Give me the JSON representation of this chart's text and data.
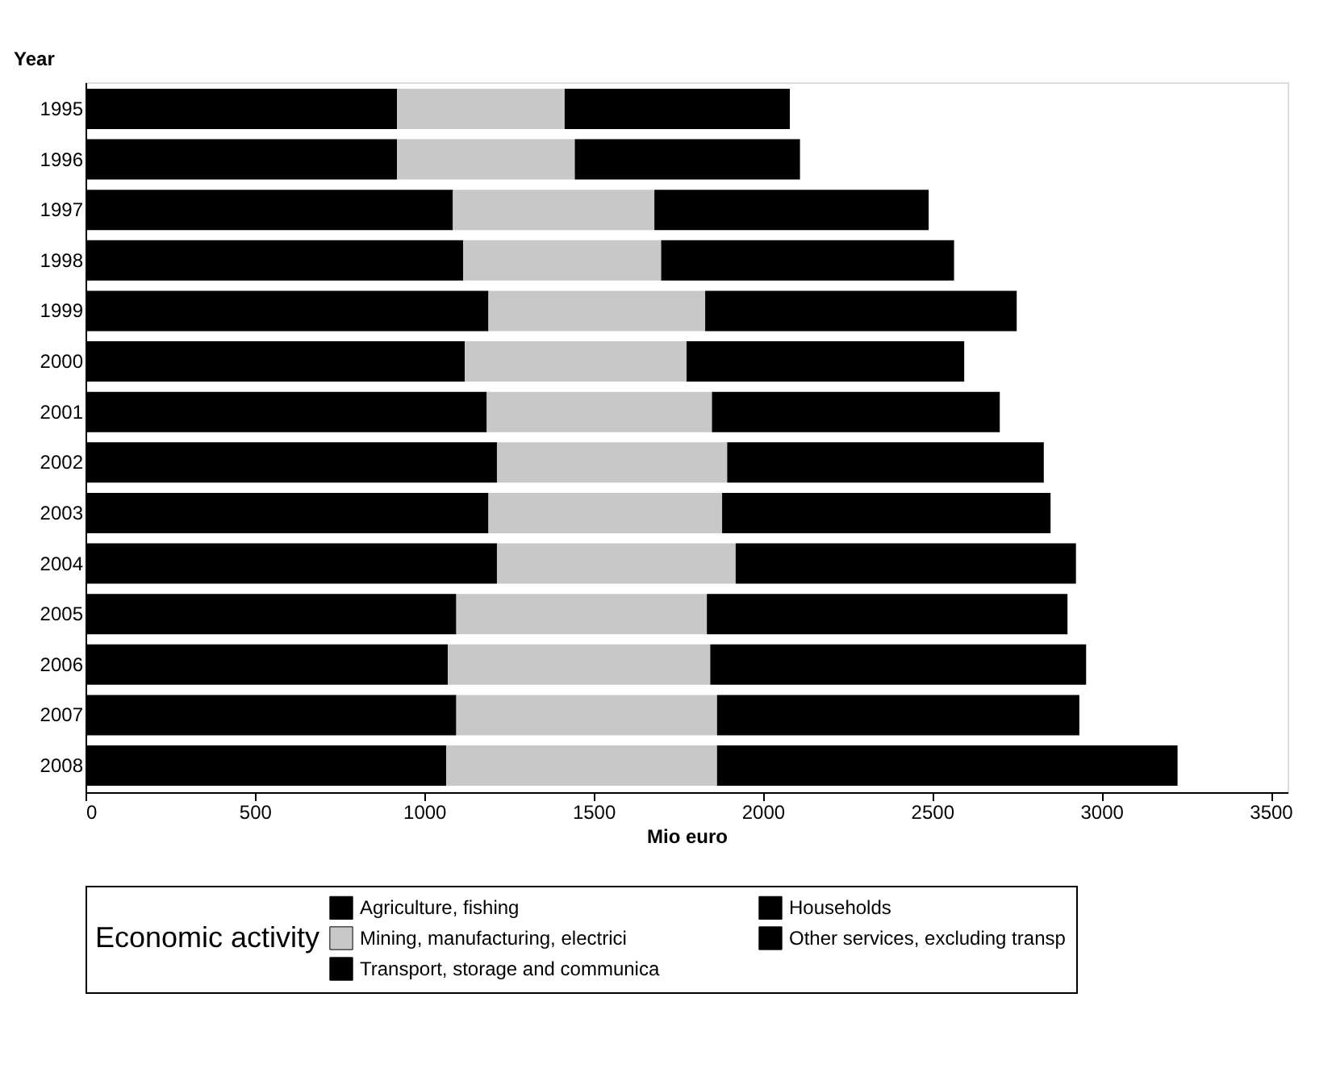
{
  "chart_data": {
    "type": "bar",
    "orientation": "horizontal",
    "stacked": true,
    "categories": [
      "1995",
      "1996",
      "1997",
      "1998",
      "1999",
      "2000",
      "2001",
      "2002",
      "2003",
      "2004",
      "2005",
      "2006",
      "2007",
      "2008"
    ],
    "series": [
      {
        "name": "Agriculture, fishing",
        "color": "#000000",
        "values": [
          920,
          920,
          1085,
          1115,
          1190,
          1120,
          1185,
          1215,
          1190,
          1215,
          1095,
          1070,
          1095,
          1065
        ]
      },
      {
        "name": "Mining, manufacturing, electrici",
        "color": "#c8c8c8",
        "values": [
          495,
          525,
          595,
          585,
          640,
          655,
          665,
          680,
          690,
          705,
          740,
          775,
          770,
          800
        ]
      },
      {
        "name": "Transport, storage and communica",
        "color": "#000000",
        "values": [
          665,
          665,
          810,
          865,
          920,
          820,
          850,
          935,
          970,
          1005,
          1065,
          1110,
          1070,
          1360
        ]
      },
      {
        "name": "Households",
        "color": "#000000",
        "values": [
          null,
          null,
          null,
          null,
          null,
          null,
          null,
          null,
          null,
          null,
          null,
          null,
          null,
          null
        ]
      },
      {
        "name": "Other services, excluding transp",
        "color": "#000000",
        "values": [
          null,
          null,
          null,
          null,
          null,
          null,
          null,
          null,
          null,
          null,
          null,
          null,
          null,
          null
        ]
      }
    ],
    "xlim": [
      0,
      3550
    ],
    "xticks": [
      0,
      500,
      1000,
      1500,
      2000,
      2500,
      3000,
      3500
    ],
    "xlabel": "Mio euro",
    "ylabel": "Year",
    "legend_title": "Economic activity",
    "legend": "bottom"
  }
}
